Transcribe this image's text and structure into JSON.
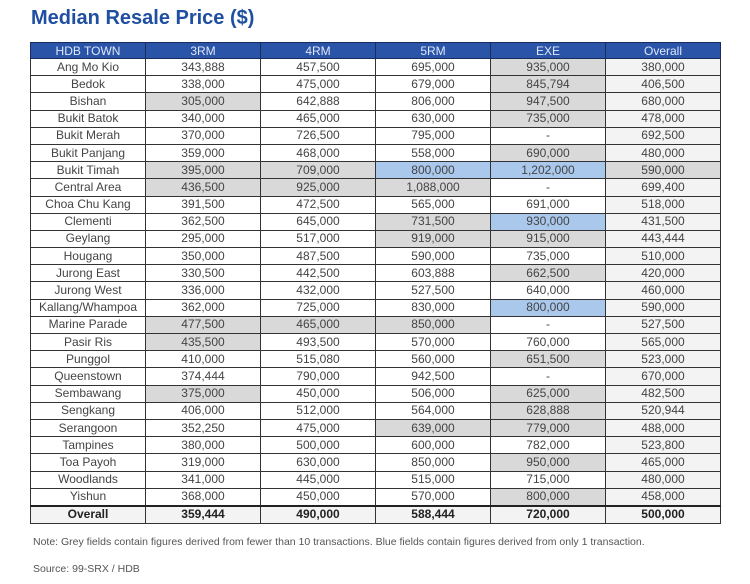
{
  "title": "Median Resale Price ($)",
  "colors": {
    "header": "#2a54a8",
    "grey": "#d9d9d9",
    "blue": "#aac8ec",
    "title": "#1f4fa0"
  },
  "table": {
    "headers": [
      "HDB TOWN",
      "3RM",
      "4RM",
      "5RM",
      "EXE",
      "Overall"
    ],
    "rows": [
      {
        "town": "Ang Mo Kio",
        "values": [
          "343,888",
          "457,500",
          "695,000",
          "935,000",
          "380,000"
        ],
        "shade": [
          "",
          "",
          "",
          "grey",
          ""
        ]
      },
      {
        "town": "Bedok",
        "values": [
          "338,000",
          "475,000",
          "679,000",
          "845,794",
          "406,500"
        ],
        "shade": [
          "",
          "",
          "",
          "grey",
          ""
        ]
      },
      {
        "town": "Bishan",
        "values": [
          "305,000",
          "642,888",
          "806,000",
          "947,500",
          "680,000"
        ],
        "shade": [
          "grey",
          "",
          "",
          "grey",
          ""
        ]
      },
      {
        "town": "Bukit Batok",
        "values": [
          "340,000",
          "465,000",
          "630,000",
          "735,000",
          "478,000"
        ],
        "shade": [
          "",
          "",
          "",
          "grey",
          ""
        ]
      },
      {
        "town": "Bukit Merah",
        "values": [
          "370,000",
          "726,500",
          "795,000",
          "-",
          "692,500"
        ],
        "shade": [
          "",
          "",
          "",
          "",
          ""
        ]
      },
      {
        "town": "Bukit Panjang",
        "values": [
          "359,000",
          "468,000",
          "558,000",
          "690,000",
          "480,000"
        ],
        "shade": [
          "",
          "",
          "",
          "grey",
          ""
        ]
      },
      {
        "town": "Bukit Timah",
        "values": [
          "395,000",
          "709,000",
          "800,000",
          "1,202,000",
          "590,000"
        ],
        "shade": [
          "grey",
          "grey",
          "blue",
          "blue",
          "grey"
        ]
      },
      {
        "town": "Central Area",
        "values": [
          "436,500",
          "925,000",
          "1,088,000",
          "-",
          "699,400"
        ],
        "shade": [
          "grey",
          "grey",
          "grey",
          "",
          ""
        ]
      },
      {
        "town": "Choa Chu Kang",
        "values": [
          "391,500",
          "472,500",
          "565,000",
          "691,000",
          "518,000"
        ],
        "shade": [
          "",
          "",
          "",
          "",
          ""
        ]
      },
      {
        "town": "Clementi",
        "values": [
          "362,500",
          "645,000",
          "731,500",
          "930,000",
          "431,500"
        ],
        "shade": [
          "",
          "",
          "grey",
          "blue",
          ""
        ]
      },
      {
        "town": "Geylang",
        "values": [
          "295,000",
          "517,000",
          "919,000",
          "915,000",
          "443,444"
        ],
        "shade": [
          "",
          "",
          "grey",
          "grey",
          ""
        ]
      },
      {
        "town": "Hougang",
        "values": [
          "350,000",
          "487,500",
          "590,000",
          "735,000",
          "510,000"
        ],
        "shade": [
          "",
          "",
          "",
          "",
          ""
        ]
      },
      {
        "town": "Jurong East",
        "values": [
          "330,500",
          "442,500",
          "603,888",
          "662,500",
          "420,000"
        ],
        "shade": [
          "",
          "",
          "",
          "grey",
          ""
        ]
      },
      {
        "town": "Jurong West",
        "values": [
          "336,000",
          "432,000",
          "527,500",
          "640,000",
          "460,000"
        ],
        "shade": [
          "",
          "",
          "",
          "",
          ""
        ]
      },
      {
        "town": "Kallang/Whampoa",
        "values": [
          "362,000",
          "725,000",
          "830,000",
          "800,000",
          "590,000"
        ],
        "shade": [
          "",
          "",
          "",
          "blue",
          ""
        ]
      },
      {
        "town": "Marine Parade",
        "values": [
          "477,500",
          "465,000",
          "850,000",
          "-",
          "527,500"
        ],
        "shade": [
          "grey",
          "grey",
          "grey",
          "",
          ""
        ]
      },
      {
        "town": "Pasir Ris",
        "values": [
          "435,500",
          "493,500",
          "570,000",
          "760,000",
          "565,000"
        ],
        "shade": [
          "grey",
          "",
          "",
          "",
          ""
        ]
      },
      {
        "town": "Punggol",
        "values": [
          "410,000",
          "515,080",
          "560,000",
          "651,500",
          "523,000"
        ],
        "shade": [
          "",
          "",
          "",
          "grey",
          ""
        ]
      },
      {
        "town": "Queenstown",
        "values": [
          "374,444",
          "790,000",
          "942,500",
          "-",
          "670,000"
        ],
        "shade": [
          "",
          "",
          "",
          "",
          ""
        ]
      },
      {
        "town": "Sembawang",
        "values": [
          "375,000",
          "450,000",
          "506,000",
          "625,000",
          "482,500"
        ],
        "shade": [
          "grey",
          "",
          "",
          "grey",
          ""
        ]
      },
      {
        "town": "Sengkang",
        "values": [
          "406,000",
          "512,000",
          "564,000",
          "628,888",
          "520,944"
        ],
        "shade": [
          "",
          "",
          "",
          "grey",
          ""
        ]
      },
      {
        "town": "Serangoon",
        "values": [
          "352,250",
          "475,000",
          "639,000",
          "779,000",
          "488,000"
        ],
        "shade": [
          "",
          "",
          "grey",
          "grey",
          ""
        ]
      },
      {
        "town": "Tampines",
        "values": [
          "380,000",
          "500,000",
          "600,000",
          "782,000",
          "523,800"
        ],
        "shade": [
          "",
          "",
          "",
          "",
          ""
        ]
      },
      {
        "town": "Toa Payoh",
        "values": [
          "319,000",
          "630,000",
          "850,000",
          "950,000",
          "465,000"
        ],
        "shade": [
          "",
          "",
          "",
          "grey",
          ""
        ]
      },
      {
        "town": "Woodlands",
        "values": [
          "341,000",
          "445,000",
          "515,000",
          "715,000",
          "480,000"
        ],
        "shade": [
          "",
          "",
          "",
          "",
          ""
        ]
      },
      {
        "town": "Yishun",
        "values": [
          "368,000",
          "450,000",
          "570,000",
          "800,000",
          "458,000"
        ],
        "shade": [
          "",
          "",
          "",
          "grey",
          ""
        ]
      }
    ],
    "total": {
      "town": "Overall",
      "values": [
        "359,444",
        "490,000",
        "588,444",
        "720,000",
        "500,000"
      ]
    }
  },
  "note": "Note: Grey fields contain figures derived from fewer than 10 transactions. Blue fields contain figures derived from only 1 transaction.",
  "source": "Source: 99-SRX / HDB"
}
